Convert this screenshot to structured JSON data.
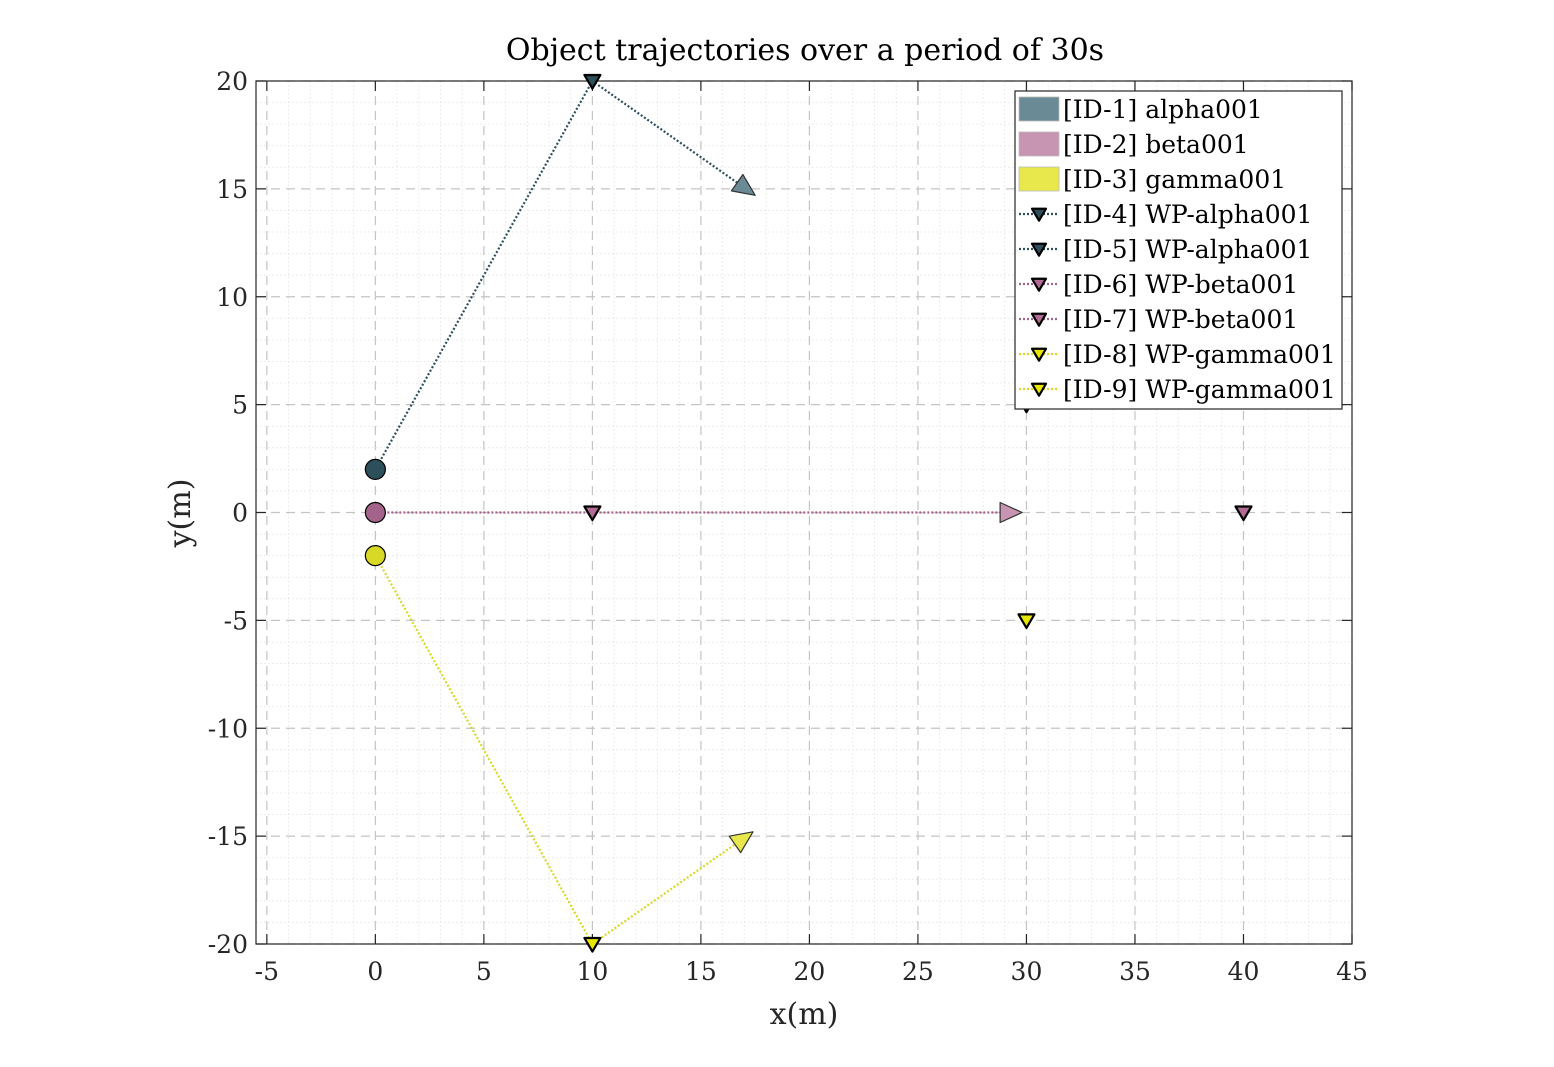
{
  "chart_data": {
    "type": "scatter",
    "title": "Object trajectories over a period of 30s",
    "xlabel": "x(m)",
    "ylabel": "y(m)",
    "xlim": [
      -5.5,
      45
    ],
    "ylim": [
      -20,
      20
    ],
    "xticks": [
      -5,
      0,
      5,
      10,
      15,
      20,
      25,
      30,
      35,
      40,
      45
    ],
    "yticks": [
      -20,
      -15,
      -10,
      -5,
      0,
      5,
      10,
      15,
      20
    ],
    "xtick_labels": [
      "-5",
      "0",
      "5",
      "10",
      "15",
      "20",
      "25",
      "30",
      "35",
      "40",
      "45"
    ],
    "ytick_labels": [
      "-20",
      "-15",
      "-10",
      "-5",
      "0",
      "5",
      "10",
      "15",
      "20"
    ],
    "grid": true,
    "minor_grid": true,
    "legend_position": "top-right",
    "objects": [
      {
        "id": "[ID-1] alpha001",
        "color": "#6a8a95",
        "marker_color": "#2d4f5c",
        "start": [
          0,
          2
        ],
        "path": [
          [
            0,
            2
          ],
          [
            10,
            20
          ],
          [
            17.5,
            14.7
          ]
        ]
      },
      {
        "id": "[ID-2] beta001",
        "color": "#c795b2",
        "marker_color": "#a3638a",
        "start": [
          0,
          0
        ],
        "path": [
          [
            0,
            0
          ],
          [
            10,
            0
          ],
          [
            29.8,
            0
          ]
        ]
      },
      {
        "id": "[ID-3] gamma001",
        "color": "#e8e84d",
        "marker_color": "#d8d826",
        "start": [
          0,
          -2
        ],
        "path": [
          [
            0,
            -2
          ],
          [
            10,
            -20
          ],
          [
            17.4,
            -14.8
          ]
        ]
      }
    ],
    "waypoints": [
      {
        "id": "[ID-4] WP-alpha001",
        "x": 10,
        "y": 20,
        "color": "#2d4f5c",
        "line_color": "#2d4f5c"
      },
      {
        "id": "[ID-5] WP-alpha001",
        "x": 30,
        "y": 5,
        "color": "#2d4f5c",
        "line_color": "#2d4f5c"
      },
      {
        "id": "[ID-6] WP-beta001",
        "x": 10,
        "y": 0,
        "color": "#b06a93",
        "line_color": "#a3638a"
      },
      {
        "id": "[ID-7] WP-beta001",
        "x": 40,
        "y": 0,
        "color": "#b06a93",
        "line_color": "#a3638a"
      },
      {
        "id": "[ID-8] WP-gamma001",
        "x": 30,
        "y": -5,
        "color": "#e6e600",
        "line_color": "#d8d826"
      },
      {
        "id": "[ID-9] WP-gamma001",
        "x": 10,
        "y": -20,
        "color": "#e6e600",
        "line_color": "#d8d826"
      }
    ]
  }
}
